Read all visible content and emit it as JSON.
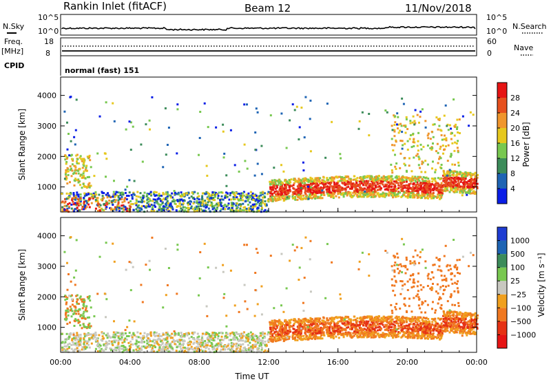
{
  "header": {
    "station": "Rankin Inlet (fitACF)",
    "beam": "Beam 12",
    "date": "11/Nov/2018"
  },
  "panels": {
    "nsky_label": "N.Sky",
    "nsky_ticks": [
      "10^5",
      "10^0"
    ],
    "nsearch_label": "N.Search",
    "nsearch_ticks": [
      "10^5",
      "10^0"
    ],
    "freq_label": "Freq.",
    "freq_unit": "[MHz]",
    "freq_ticks": [
      "18",
      "8"
    ],
    "nave_label": "Nave",
    "nave_ticks": [
      "60",
      "0"
    ],
    "cpid_label": "CPID",
    "cpid_value": "normal (fast) 151"
  },
  "chart_data": [
    {
      "type": "heatmap",
      "name": "power",
      "ylabel": "Slant Range [km]",
      "xlabel": "",
      "yticks": [
        1000,
        2000,
        3000,
        4000
      ],
      "ylim": [
        180,
        4600
      ],
      "colorbar_label": "Power [dB]",
      "colorbar_ticks": [
        4,
        8,
        12,
        16,
        20,
        24,
        28
      ],
      "colorbar_range": [
        0,
        32
      ],
      "colors": [
        "#0a1ee6",
        "#1e64b4",
        "#3c8c5a",
        "#78c850",
        "#e6c81e",
        "#f0962d",
        "#e6501e",
        "#e61414"
      ]
    },
    {
      "type": "heatmap",
      "name": "velocity",
      "ylabel": "Slant Range [km]",
      "xlabel": "Time UT",
      "yticks": [
        1000,
        2000,
        3000,
        4000
      ],
      "ylim": [
        180,
        4600
      ],
      "xticks": [
        "00:00",
        "04:00",
        "08:00",
        "12:00",
        "16:00",
        "20:00",
        "00:00"
      ],
      "colorbar_label": "Velocity [m s⁻¹]",
      "colorbar_ticks": [
        "1000",
        "500",
        "100",
        "25",
        "−25",
        "−100",
        "−500",
        "−1000"
      ],
      "colors": [
        "#1e3cd2",
        "#1e64b4",
        "#3c8c5a",
        "#78c850",
        "#c8c8c0",
        "#f0a01e",
        "#f07820",
        "#e63214",
        "#e61414"
      ]
    }
  ]
}
